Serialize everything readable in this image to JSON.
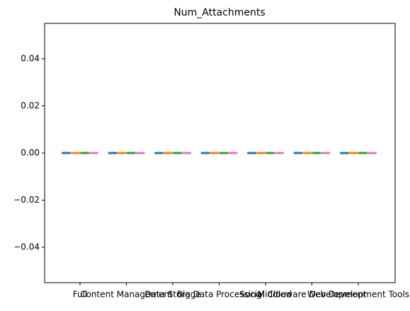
{
  "chart_data": {
    "type": "box",
    "title": "Num_Attachments",
    "categories": [
      "Full",
      "Content Management",
      "Data Storage",
      "Big Data Processing",
      "Social Cloud",
      "Middleware Development",
      "Web Development Tools"
    ],
    "series": [
      {
        "color": "#1f77b4",
        "values": [
          0,
          0,
          0,
          0,
          0,
          0,
          0
        ]
      },
      {
        "color": "#ff7f0e",
        "values": [
          0,
          0,
          0,
          0,
          0,
          0,
          0
        ]
      },
      {
        "color": "#2ca02c",
        "values": [
          0,
          0,
          0,
          0,
          0,
          0,
          0
        ]
      },
      {
        "color": "#e377c2",
        "values": [
          0,
          0,
          0,
          0,
          0,
          0,
          0
        ]
      }
    ],
    "ylim": [
      -0.055,
      0.055
    ],
    "yticks": [
      {
        "value": -0.04,
        "label": "−0.04"
      },
      {
        "value": -0.02,
        "label": "−0.02"
      },
      {
        "value": 0,
        "label": "0.00"
      },
      {
        "value": 0.02,
        "label": "0.02"
      },
      {
        "value": 0.04,
        "label": "0.04"
      }
    ]
  }
}
